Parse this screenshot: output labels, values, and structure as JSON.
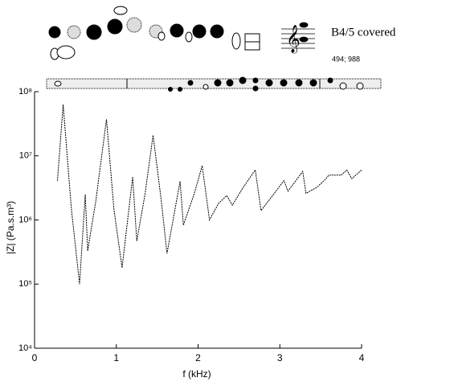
{
  "chart_data": {
    "type": "line",
    "title": "B4/5  covered",
    "subtitle": "494; 988",
    "x_label": "f (kHz)",
    "y_label": "|Z| (Pa.s.m³)",
    "x": [
      0.28,
      0.35,
      0.45,
      0.55,
      0.62,
      0.65,
      0.75,
      0.88,
      0.97,
      1.07,
      1.2,
      1.25,
      1.35,
      1.45,
      1.55,
      1.62,
      1.78,
      1.82,
      1.95,
      2.05,
      2.14,
      2.25,
      2.35,
      2.42,
      2.55,
      2.7,
      2.77,
      2.9,
      3.05,
      3.1,
      3.28,
      3.32,
      3.45,
      3.55,
      3.6,
      3.75,
      3.82,
      3.88,
      4.0
    ],
    "values": [
      4100000,
      63000000,
      1500000,
      100000,
      2500000,
      330000,
      2000000,
      37000000,
      1500000,
      180000,
      4700000,
      470000,
      2500000,
      21000000,
      2000000,
      300000,
      4000000,
      830000,
      2500000,
      7000000,
      1000000,
      1800000,
      2400000,
      1700000,
      3200000,
      6000000,
      1400000,
      2300000,
      4100000,
      2800000,
      5700000,
      2600000,
      3200000,
      4200000,
      5000000,
      5000000,
      6000000,
      4400000,
      6000000
    ],
    "color": "#000000",
    "xlim": [
      0,
      4
    ],
    "xticks": [
      0,
      1,
      2,
      3,
      4
    ],
    "ylim": [
      10000,
      100000000
    ],
    "log_y": true,
    "yticks": [
      {
        "value": 10000,
        "label": "10⁴"
      },
      {
        "value": 100000,
        "label": "10⁵"
      },
      {
        "value": 1000000,
        "label": "10⁶"
      },
      {
        "value": 10000000,
        "label": "10⁷"
      },
      {
        "value": 100000000,
        "label": "10⁸"
      }
    ]
  }
}
